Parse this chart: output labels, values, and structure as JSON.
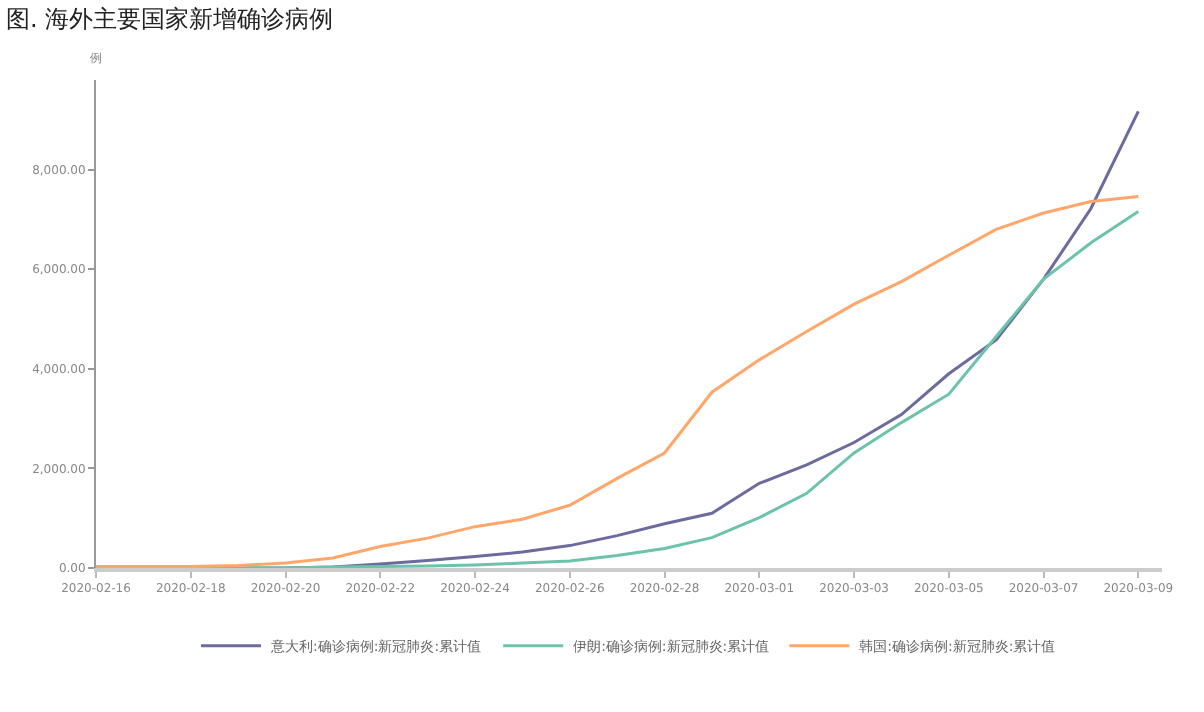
{
  "chart_data": {
    "type": "line",
    "title": "图. 海外主要国家新增确诊病例",
    "ylabel": "例",
    "x": [
      "2020-02-16",
      "2020-02-17",
      "2020-02-18",
      "2020-02-19",
      "2020-02-20",
      "2020-02-21",
      "2020-02-22",
      "2020-02-23",
      "2020-02-24",
      "2020-02-25",
      "2020-02-26",
      "2020-02-27",
      "2020-02-28",
      "2020-02-29",
      "2020-03-01",
      "2020-03-02",
      "2020-03-03",
      "2020-03-04",
      "2020-03-05",
      "2020-03-06",
      "2020-03-07",
      "2020-03-08",
      "2020-03-09"
    ],
    "series": [
      {
        "name": "意大利:确诊病例:新冠肺炎:累计值",
        "color": "#6b6b9e",
        "values": [
          0,
          0,
          0,
          0,
          0,
          20,
          80,
          150,
          230,
          320,
          450,
          650,
          890,
          1100,
          1700,
          2070,
          2520,
          3080,
          3900,
          4580,
          5800,
          7220,
          9170
        ]
      },
      {
        "name": "伊朗:确诊病例:新冠肺炎:累计值",
        "color": "#6cc3ab",
        "values": [
          0,
          0,
          0,
          0,
          0,
          20,
          30,
          40,
          60,
          100,
          140,
          250,
          390,
          610,
          1010,
          1500,
          2310,
          2920,
          3490,
          4650,
          5800,
          6530,
          7160
        ]
      },
      {
        "name": "韩国:确诊病例:新冠肺炎:累计值",
        "color": "#ffa66b",
        "values": [
          30,
          30,
          30,
          50,
          100,
          200,
          430,
          600,
          830,
          980,
          1260,
          1800,
          2310,
          3530,
          4180,
          4750,
          5300,
          5750,
          6280,
          6800,
          7130,
          7360,
          7460
        ]
      }
    ],
    "xlim": [
      "2020-02-16",
      "2020-03-09T12:00"
    ],
    "xticks": [
      {
        "value": "2020-02-16",
        "label": "2020-02-16"
      },
      {
        "value": "2020-02-18",
        "label": "2020-02-18"
      },
      {
        "value": "2020-02-20",
        "label": "2020-02-20"
      },
      {
        "value": "2020-02-22",
        "label": "2020-02-22"
      },
      {
        "value": "2020-02-24",
        "label": "2020-02-24"
      },
      {
        "value": "2020-02-26",
        "label": "2020-02-26"
      },
      {
        "value": "2020-02-28",
        "label": "2020-02-28"
      },
      {
        "value": "2020-03-01",
        "label": "2020-03-01"
      },
      {
        "value": "2020-03-03",
        "label": "2020-03-03"
      },
      {
        "value": "2020-03-05",
        "label": "2020-03-05"
      },
      {
        "value": "2020-03-07",
        "label": "2020-03-07"
      },
      {
        "value": "2020-03-09",
        "label": "2020-03-09"
      }
    ],
    "ylim": [
      0,
      9800
    ],
    "yticks": [
      {
        "value": 0,
        "label": "0.00"
      },
      {
        "value": 2000,
        "label": "2,000.00"
      },
      {
        "value": 4000,
        "label": "4,000.00"
      },
      {
        "value": 6000,
        "label": "6,000.00"
      },
      {
        "value": 8000,
        "label": "8,000.00"
      }
    ],
    "legend": "bottom",
    "marker": "none",
    "line_style": "solid"
  }
}
